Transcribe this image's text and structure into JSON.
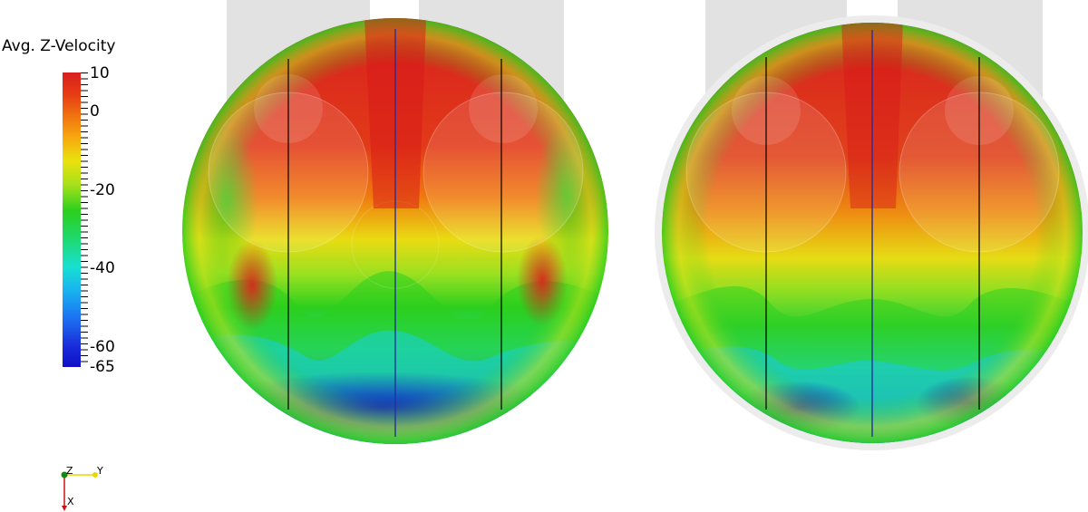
{
  "colorbar": {
    "title": "Avg. Z-Velocity",
    "labels": [
      "10",
      "0",
      "-20",
      "-40",
      "-60",
      "-65"
    ]
  },
  "views": [
    "left-view",
    "right-view"
  ],
  "orientation": {
    "z": "Z",
    "y": "Y",
    "x": "X"
  },
  "colors": {
    "red": "#d81f1f",
    "orange": "#f07a10",
    "yellow": "#e8e012",
    "green": "#2ccf1e",
    "cyan": "#18e0d0",
    "blue": "#1a3ae0"
  }
}
